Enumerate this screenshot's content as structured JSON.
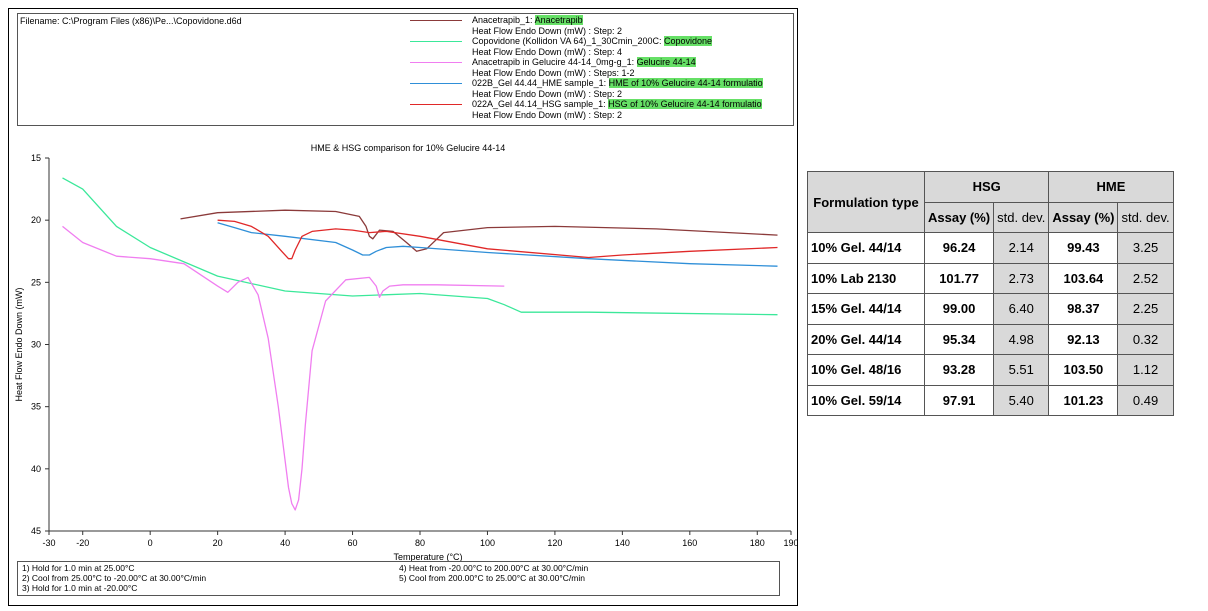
{
  "filename": "Filename:  C:\\Program Files (x86)\\Pe...\\Copovidone.d6d",
  "legend": [
    {
      "name_prefix": "Anacetrapib_1: ",
      "highlight": "Anacetrapib",
      "sub": "Heat Flow Endo Down (mW) : Step: 2",
      "color": "#8b3a3a"
    },
    {
      "name_prefix": "Copovidone (Kollidon VA 64)_1_30Cmin_200C: ",
      "highlight": "Copovidone",
      "sub": "Heat Flow Endo Down (mW) : Step: 4",
      "color": "#3be89a"
    },
    {
      "name_prefix": "Anacetrapib in Gelucire 44-14_0mg-g_1: ",
      "highlight": "Gelucire 44-14",
      "sub": "Heat Flow Endo Down (mW) : Steps: 1-2",
      "color": "#f07ef0"
    },
    {
      "name_prefix": "022B_Gel 44.44_HME sample_1: ",
      "highlight": "HME of 10% Gelucire 44-14 formulatio",
      "sub": "Heat Flow Endo Down (mW) : Step: 2",
      "color": "#2f8fd8"
    },
    {
      "name_prefix": "022A_Gel 44.14_HSG sample_1: ",
      "highlight": "HSG of 10% Gelucire 44-14 formulatio",
      "sub": "Heat Flow Endo Down (mW) : Step: 2",
      "color": "#e02828"
    }
  ],
  "steps": [
    "1)  Hold for 1.0 min at 25.00°C",
    "2)  Cool from 25.00°C to -20.00°C at 30.00°C/min",
    "3)  Hold for 1.0 min at -20.00°C",
    "4)   Heat from -20.00°C to 200.00°C at 30.00°C/min",
    "5)   Cool from 200.00°C to 25.00°C at 30.00°C/min"
  ],
  "chart_data": {
    "type": "line",
    "title": "HME & HSG comparison for 10% Gelucire 44-14",
    "xlabel": "Temperature (°C)",
    "ylabel": "Heat Flow Endo Down (mW)",
    "xlim": [
      -30,
      190
    ],
    "ylim": [
      15,
      45
    ],
    "y_inverted": true,
    "xticks": [
      "-30",
      "-20",
      "0",
      "20",
      "40",
      "60",
      "80",
      "100",
      "120",
      "140",
      "160",
      "180",
      "190"
    ],
    "yticks": [
      "15",
      "20",
      "25",
      "30",
      "35",
      "40",
      "45"
    ],
    "xtick_values": [
      -30,
      -20,
      0,
      20,
      40,
      60,
      80,
      100,
      120,
      140,
      160,
      180,
      190
    ],
    "ytick_values": [
      15,
      20,
      25,
      30,
      35,
      40,
      45
    ],
    "series": [
      {
        "name": "Anacetrapib",
        "color": "#8b3a3a",
        "x": [
          9,
          20,
          40,
          55,
          62,
          64,
          65,
          66,
          68,
          72,
          76,
          79,
          82,
          87,
          100,
          120,
          150,
          186
        ],
        "y": [
          19.9,
          19.4,
          19.2,
          19.3,
          19.7,
          20.5,
          21.3,
          21.5,
          20.8,
          20.9,
          21.8,
          22.5,
          22.3,
          21.0,
          20.6,
          20.5,
          20.7,
          21.2
        ]
      },
      {
        "name": "Copovidone",
        "color": "#3be89a",
        "x": [
          -26,
          -20,
          -10,
          0,
          20,
          40,
          60,
          80,
          100,
          105,
          110,
          115,
          130,
          186
        ],
        "y": [
          16.6,
          17.5,
          20.5,
          22.2,
          24.5,
          25.7,
          26.1,
          25.9,
          26.3,
          26.8,
          27.4,
          27.4,
          27.4,
          27.6
        ]
      },
      {
        "name": "Gelucire 44-14",
        "color": "#f07ef0",
        "x": [
          -26,
          -20,
          -10,
          0,
          10,
          20,
          23,
          26,
          29,
          32,
          35,
          38,
          41,
          42,
          43,
          44,
          45,
          46,
          48,
          52,
          58,
          65,
          67,
          68,
          69,
          71,
          75,
          85,
          105
        ],
        "y": [
          20.5,
          21.8,
          22.9,
          23.1,
          23.5,
          25.3,
          25.8,
          25.0,
          24.6,
          26.0,
          29.5,
          35.0,
          41.5,
          42.8,
          43.3,
          42.5,
          40.0,
          36.5,
          30.5,
          26.5,
          24.8,
          24.6,
          25.3,
          26.2,
          25.7,
          25.3,
          25.2,
          25.2,
          25.3
        ]
      },
      {
        "name": "HME of 10% Gelucire 44-14 formulation",
        "color": "#2f8fd8",
        "x": [
          20,
          25,
          30,
          40,
          55,
          60,
          63,
          65,
          67,
          70,
          75,
          80,
          100,
          130,
          160,
          186
        ],
        "y": [
          20.2,
          20.6,
          21.0,
          21.3,
          21.8,
          22.4,
          22.8,
          22.8,
          22.5,
          22.2,
          22.1,
          22.2,
          22.6,
          23.1,
          23.5,
          23.7
        ]
      },
      {
        "name": "HSG of 10% Gelucire 44-14 formulation",
        "color": "#e02828",
        "x": [
          20,
          25,
          30,
          35,
          39,
          41,
          42,
          43,
          45,
          48,
          55,
          60,
          65,
          70,
          80,
          100,
          130,
          140,
          160,
          186
        ],
        "y": [
          20.0,
          20.1,
          20.5,
          21.3,
          22.5,
          23.1,
          23.1,
          22.4,
          21.3,
          20.9,
          20.7,
          20.8,
          21.0,
          20.9,
          21.3,
          22.3,
          23.0,
          22.8,
          22.5,
          22.2
        ]
      }
    ]
  },
  "table": {
    "col_header": "Formulation type",
    "group1": "HSG",
    "group2": "HME",
    "sub_headers": [
      "Assay (%)",
      "std. dev.",
      "Assay (%)",
      "std. dev."
    ],
    "rows": [
      {
        "label": "10% Gel. 44/14",
        "hsg_assay": "96.24",
        "hsg_sd": "2.14",
        "hme_assay": "99.43",
        "hme_sd": "3.25"
      },
      {
        "label": "10% Lab 2130",
        "hsg_assay": "101.77",
        "hsg_sd": "2.73",
        "hme_assay": "103.64",
        "hme_sd": "2.52"
      },
      {
        "label": "15% Gel. 44/14",
        "hsg_assay": "99.00",
        "hsg_sd": "6.40",
        "hme_assay": "98.37",
        "hme_sd": "2.25"
      },
      {
        "label": "20% Gel. 44/14",
        "hsg_assay": "95.34",
        "hsg_sd": "4.98",
        "hme_assay": "92.13",
        "hme_sd": "0.32"
      },
      {
        "label": "10% Gel. 48/16",
        "hsg_assay": "93.28",
        "hsg_sd": "5.51",
        "hme_assay": "103.50",
        "hme_sd": "1.12"
      },
      {
        "label": "10% Gel. 59/14",
        "hsg_assay": "97.91",
        "hsg_sd": "5.40",
        "hme_assay": "101.23",
        "hme_sd": "0.49"
      }
    ]
  }
}
